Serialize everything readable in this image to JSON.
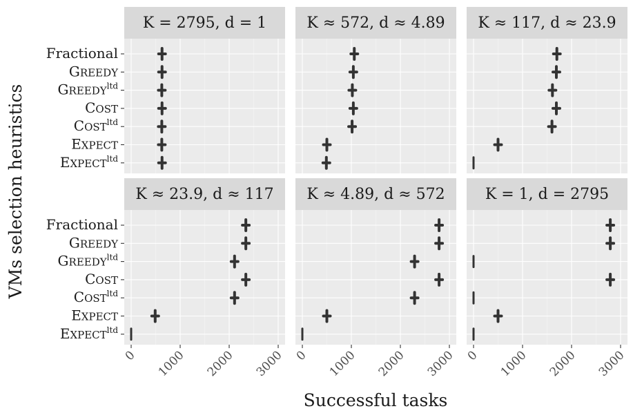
{
  "chart_data": {
    "type": "scatter",
    "facet_layout": "2x3",
    "xlabel": "Successful tasks",
    "ylabel": "VMs selection heuristics",
    "xlim": [
      0,
      3000
    ],
    "x_ticks": [
      0,
      1000,
      2000,
      3000
    ],
    "x_tick_labels": [
      "0",
      "1000",
      "2000",
      "3000"
    ],
    "grid": true,
    "categories": [
      {
        "base": "Fractional",
        "sup": ""
      },
      {
        "base": "Greedy",
        "sup": ""
      },
      {
        "base": "Greedy",
        "sup": "ltd"
      },
      {
        "base": "Cost",
        "sup": ""
      },
      {
        "base": "Cost",
        "sup": "ltd"
      },
      {
        "base": "Expect",
        "sup": ""
      },
      {
        "base": "Expect",
        "sup": "ltd"
      }
    ],
    "panels": [
      {
        "title": "K = 2795, d = 1",
        "values": [
          630,
          630,
          625,
          630,
          625,
          625,
          630
        ]
      },
      {
        "title": "K ≈ 572, d ≈ 4.89",
        "values": [
          1060,
          1040,
          1020,
          1040,
          1015,
          500,
          490
        ]
      },
      {
        "title": "K ≈ 117, d ≈ 23.9",
        "values": [
          1700,
          1690,
          1610,
          1690,
          1600,
          500,
          0
        ]
      },
      {
        "title": "K ≈ 23.9, d ≈ 117",
        "values": [
          2340,
          2340,
          2110,
          2340,
          2110,
          490,
          0
        ]
      },
      {
        "title": "K ≈ 4.89, d ≈ 572",
        "values": [
          2790,
          2790,
          2290,
          2790,
          2290,
          500,
          0
        ]
      },
      {
        "title": "K = 1, d = 2795",
        "values": [
          2790,
          2790,
          0,
          2790,
          0,
          500,
          0
        ]
      }
    ]
  }
}
